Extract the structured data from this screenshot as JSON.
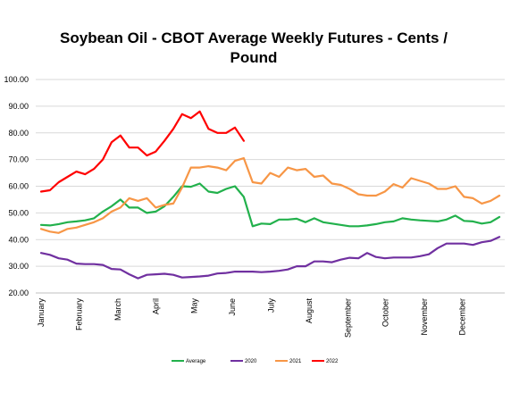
{
  "chart_data": {
    "type": "line",
    "title_line1": "Soybean Oil - CBOT Average Weekly Futures - Cents /",
    "title_line2": "Pound",
    "ylim": [
      20,
      100
    ],
    "yticks": [
      "20.00",
      "30.00",
      "40.00",
      "50.00",
      "60.00",
      "70.00",
      "80.00",
      "90.00",
      "100.00"
    ],
    "months": [
      "January",
      "February",
      "March",
      "April",
      "May",
      "June",
      "July",
      "August",
      "September",
      "October",
      "November",
      "December"
    ],
    "grid": "horizontal",
    "legend_position": "bottom",
    "series": [
      {
        "name": "Average",
        "color": "#22b14c",
        "values": [
          45.5,
          45.3,
          45.8,
          46.5,
          46.8,
          47.2,
          48.0,
          50.5,
          52.5,
          55.0,
          52.0,
          52.0,
          50.0,
          50.5,
          52.5,
          56.0,
          60.0,
          59.8,
          61.0,
          58.0,
          57.5,
          59.0,
          60.0,
          56.0,
          45.0,
          46.0,
          45.8,
          47.5,
          47.5,
          47.8,
          46.5,
          48.0,
          46.5,
          46.0,
          45.5,
          45.0,
          45.0,
          45.3,
          45.8,
          46.5,
          46.8,
          48.0,
          47.5,
          47.2,
          47.0,
          46.8,
          47.5,
          49.0,
          47.0,
          46.8,
          46.0,
          46.5,
          48.5
        ]
      },
      {
        "name": "2020",
        "color": "#7030a0",
        "values": [
          35.0,
          34.3,
          33.0,
          32.5,
          31.0,
          30.8,
          30.8,
          30.5,
          29.0,
          28.8,
          27.0,
          25.5,
          26.8,
          27.0,
          27.2,
          26.8,
          25.8,
          26.0,
          26.2,
          26.5,
          27.3,
          27.5,
          28.0,
          28.0,
          28.0,
          27.8,
          28.0,
          28.3,
          28.8,
          30.0,
          30.0,
          31.8,
          31.8,
          31.5,
          32.5,
          33.2,
          33.0,
          35.0,
          33.5,
          33.0,
          33.3,
          33.3,
          33.3,
          33.8,
          34.5,
          36.8,
          38.5,
          38.5,
          38.5,
          38.0,
          39.0,
          39.5,
          41.0
        ]
      },
      {
        "name": "2021",
        "color": "#f79646",
        "values": [
          44.0,
          43.0,
          42.5,
          44.0,
          44.5,
          45.5,
          46.5,
          48.0,
          50.5,
          52.0,
          55.5,
          54.5,
          55.5,
          52.0,
          53.0,
          53.5,
          59.5,
          67.0,
          67.0,
          67.5,
          67.0,
          66.0,
          69.5,
          70.5,
          61.5,
          61.0,
          65.0,
          63.5,
          67.0,
          66.0,
          66.5,
          63.5,
          64.0,
          61.0,
          60.5,
          59.0,
          57.0,
          56.5,
          56.5,
          58.0,
          60.8,
          59.5,
          63.0,
          62.0,
          61.0,
          59.0,
          59.0,
          60.0,
          56.0,
          55.5,
          53.5,
          54.5,
          56.5
        ]
      },
      {
        "name": "2022",
        "color": "#ff0000",
        "values": [
          58.0,
          58.5,
          61.5,
          63.5,
          65.5,
          64.5,
          66.5,
          70.0,
          76.5,
          79.0,
          74.5,
          74.5,
          71.5,
          73.0,
          77.0,
          81.5,
          87.0,
          85.5,
          88.0,
          81.5,
          80.0,
          80.0,
          82.0,
          77.0
        ]
      }
    ]
  }
}
